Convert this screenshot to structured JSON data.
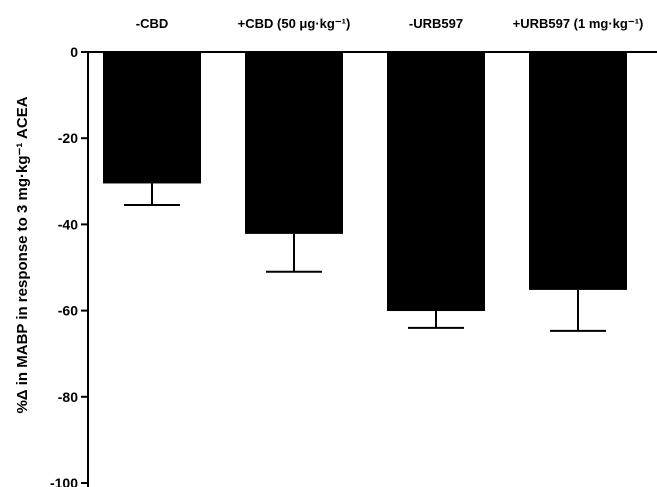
{
  "chart_data": {
    "type": "bar",
    "ylabel": "%Δ in MABP in response to 3 mg·kg⁻¹ ACEA",
    "ylim": [
      -100,
      0
    ],
    "yticks": [
      0,
      -20,
      -40,
      -60,
      -80,
      -100
    ],
    "ytick_labels": [
      "0",
      "-20",
      "-40",
      "-60",
      "-80",
      "-100"
    ],
    "categories": [
      "-CBD",
      "+CBD (50 μg·kg⁻¹)",
      "-URB597",
      "+URB597 (1 mg·kg⁻¹)"
    ],
    "values": [
      -30.5,
      -42.2,
      -60.1,
      -55.2
    ],
    "errors": [
      5.0,
      8.8,
      3.9,
      9.5
    ],
    "bar_color": "#000000",
    "x_axis_position": "top",
    "grid": false,
    "legend": "none"
  }
}
